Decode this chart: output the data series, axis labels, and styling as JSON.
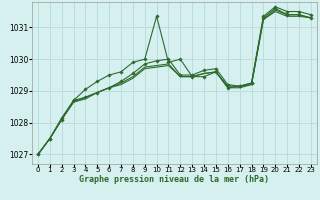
{
  "title": "Graphe pression niveau de la mer (hPa)",
  "bg_color": "#d6f0f0",
  "grid_color": "#b8dada",
  "line_color": "#2d6a2d",
  "xlim": [
    -0.5,
    23.5
  ],
  "ylim": [
    1026.7,
    1031.8
  ],
  "yticks": [
    1027,
    1028,
    1029,
    1030,
    1031
  ],
  "xticks": [
    0,
    1,
    2,
    3,
    4,
    5,
    6,
    7,
    8,
    9,
    10,
    11,
    12,
    13,
    14,
    15,
    16,
    17,
    18,
    19,
    20,
    21,
    22,
    23
  ],
  "series_with_markers": [
    [
      1027.0,
      1027.5,
      1028.1,
      1028.7,
      1029.05,
      1029.3,
      1029.5,
      1029.6,
      1029.9,
      1030.0,
      1031.35,
      1029.9,
      1030.0,
      1029.45,
      1029.45,
      1029.6,
      1029.1,
      1029.15,
      1029.25,
      1031.3,
      1031.6,
      1031.4,
      1031.4,
      1031.3
    ],
    [
      1027.0,
      1027.5,
      1028.15,
      1028.7,
      1028.8,
      1028.95,
      1029.1,
      1029.3,
      1029.55,
      1029.85,
      1029.95,
      1030.0,
      1029.5,
      1029.5,
      1029.65,
      1029.7,
      1029.2,
      1029.15,
      1029.25,
      1031.35,
      1031.65,
      1031.5,
      1031.5,
      1031.4
    ]
  ],
  "series_smooth": [
    [
      1027.0,
      1027.5,
      1028.1,
      1028.65,
      1028.8,
      1028.95,
      1029.1,
      1029.25,
      1029.45,
      1029.75,
      1029.8,
      1029.85,
      1029.45,
      1029.45,
      1029.55,
      1029.6,
      1029.15,
      1029.15,
      1029.2,
      1031.25,
      1031.55,
      1031.4,
      1031.4,
      1031.3
    ],
    [
      1027.0,
      1027.5,
      1028.1,
      1028.65,
      1028.75,
      1028.95,
      1029.1,
      1029.2,
      1029.4,
      1029.7,
      1029.75,
      1029.8,
      1029.45,
      1029.45,
      1029.55,
      1029.6,
      1029.1,
      1029.1,
      1029.2,
      1031.25,
      1031.5,
      1031.35,
      1031.35,
      1031.3
    ]
  ]
}
